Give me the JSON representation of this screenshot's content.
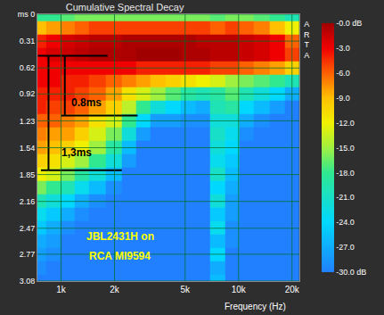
{
  "chart_data": {
    "type": "heatmap",
    "title": "Cumulative Spectral Decay",
    "x_label": "Frequency (Hz)",
    "log": "x",
    "grid": true,
    "watermark": "ARTA",
    "x": [
      750,
      900,
      1100,
      1300,
      1600,
      2000,
      2400,
      2900,
      3500,
      4300,
      5200,
      6300,
      7600,
      9200,
      11000,
      13500,
      16500,
      20000
    ],
    "y": [
      0,
      0.15,
      0.31,
      0.46,
      0.62,
      0.77,
      0.92,
      1.08,
      1.23,
      1.38,
      1.54,
      1.69,
      1.85,
      2.0,
      2.16,
      2.31,
      2.47,
      2.62,
      2.77,
      2.93,
      3.08
    ],
    "z": [
      [
        -18,
        -18,
        -17,
        -16,
        -16,
        -16,
        -16,
        -16,
        -16,
        -16,
        -16,
        -16,
        -17,
        -16,
        -16,
        -17,
        -18,
        -20
      ],
      [
        -9,
        -8,
        -7,
        -6,
        -5,
        -5,
        -5,
        -5,
        -5,
        -5,
        -5,
        -5,
        -6,
        -5,
        -6,
        -7,
        -9,
        -12
      ],
      [
        -4,
        -3,
        -2,
        -1.5,
        -1,
        -1,
        -0.5,
        -0.5,
        -0.5,
        -0.5,
        -0.5,
        -1,
        -1,
        -1,
        -1.5,
        -2,
        -3,
        -6
      ],
      [
        -3,
        -2,
        -1.5,
        -1,
        -0.5,
        -0.5,
        -0.5,
        0,
        0,
        0,
        -0.5,
        -0.5,
        -1,
        -1,
        -1.5,
        -2,
        -3,
        -5
      ],
      [
        -3,
        -3,
        -3,
        -3,
        -3,
        -3,
        -3,
        -4,
        -4,
        -4,
        -4,
        -4,
        -5,
        -5,
        -6,
        -7,
        -8,
        -10
      ],
      [
        -3,
        -3,
        -4,
        -4,
        -5,
        -6,
        -7,
        -8,
        -9,
        -10,
        -11,
        -12,
        -13,
        -15,
        -16,
        -17,
        -18,
        -20
      ],
      [
        -4,
        -4,
        -4,
        -5,
        -6,
        -8,
        -11,
        -13,
        -15,
        -17,
        -19,
        -20,
        -19,
        -17,
        -20,
        -22,
        -24,
        -27
      ],
      [
        -4,
        -5,
        -5,
        -6,
        -8,
        -10,
        -14,
        -18,
        -22,
        -24,
        -26,
        -27,
        -20,
        -19,
        -24,
        -26,
        -28,
        -30
      ],
      [
        -6,
        -6,
        -7,
        -8,
        -11,
        -13,
        -18,
        -24,
        -28,
        -28,
        -29,
        -29,
        -22,
        -22,
        -27,
        -29,
        -30,
        -30
      ],
      [
        -7,
        -8,
        -8,
        -10,
        -13,
        -16,
        -22,
        -28,
        -30,
        -30,
        -30,
        -30,
        -21,
        -23,
        -29,
        -30,
        -30,
        -30
      ],
      [
        -8,
        -9,
        -10,
        -12,
        -15,
        -19,
        -26,
        -30,
        -30,
        -30,
        -30,
        -30,
        -22,
        -24,
        -30,
        -30,
        -30,
        -30
      ],
      [
        -10,
        -11,
        -13,
        -15,
        -18,
        -22,
        -28,
        -30,
        -30,
        -30,
        -30,
        -30,
        -23,
        -25,
        -30,
        -30,
        -30,
        -30
      ],
      [
        -12,
        -13,
        -16,
        -19,
        -22,
        -26,
        -30,
        -30,
        -30,
        -30,
        -30,
        -30,
        -21,
        -26,
        -30,
        -30,
        -30,
        -30
      ],
      [
        -16,
        -18,
        -20,
        -23,
        -26,
        -29,
        -30,
        -30,
        -30,
        -30,
        -30,
        -30,
        -24,
        -27,
        -30,
        -30,
        -30,
        -30
      ],
      [
        -20,
        -22,
        -24,
        -27,
        -29,
        -30,
        -30,
        -30,
        -30,
        -30,
        -30,
        -30,
        -22,
        -28,
        -30,
        -30,
        -30,
        -30
      ],
      [
        -23,
        -25,
        -27,
        -29,
        -30,
        -30,
        -30,
        -30,
        -30,
        -30,
        -30,
        -30,
        -25,
        -28,
        -30,
        -30,
        -30,
        -30
      ],
      [
        -25,
        -27,
        -29,
        -30,
        -30,
        -30,
        -30,
        -30,
        -30,
        -30,
        -30,
        -30,
        -23,
        -29,
        -30,
        -30,
        -30,
        -30
      ],
      [
        -27,
        -28,
        -30,
        -30,
        -30,
        -30,
        -30,
        -30,
        -30,
        -30,
        -30,
        -30,
        -26,
        -29,
        -30,
        -30,
        -30,
        -30
      ],
      [
        -28,
        -29,
        -30,
        -30,
        -30,
        -30,
        -30,
        -30,
        -30,
        -30,
        -30,
        -30,
        -24,
        -30,
        -30,
        -30,
        -30,
        -30
      ],
      [
        -29,
        -30,
        -30,
        -30,
        -30,
        -30,
        -30,
        -30,
        -30,
        -30,
        -30,
        -30,
        -27,
        -30,
        -30,
        -30,
        -30,
        -30
      ],
      [
        -30,
        -30,
        -30,
        -30,
        -30,
        -30,
        -30,
        -30,
        -30,
        -30,
        -30,
        -30,
        -26,
        -30,
        -30,
        -30,
        -30,
        -30
      ]
    ],
    "xlim": [
      736,
      22000
    ],
    "xticks": [
      {
        "value": 1000,
        "label": "1k"
      },
      {
        "value": 2000,
        "label": "2k"
      },
      {
        "value": 5000,
        "label": "5k"
      },
      {
        "value": 10000,
        "label": "10k"
      },
      {
        "value": 20000,
        "label": "20k"
      }
    ],
    "ylim": [
      3.08,
      0
    ],
    "yticks": [
      {
        "value": 0,
        "label": "ms 0"
      },
      0.31,
      0.62,
      0.92,
      1.23,
      1.54,
      1.85,
      2.16,
      2.47,
      2.77,
      3.08
    ],
    "colorbar": {
      "range": [
        -30,
        0
      ],
      "ticks": [
        {
          "value": 0,
          "label": "-0.0 dB"
        },
        {
          "value": -3,
          "label": "-3.0"
        },
        {
          "value": -6,
          "label": "-6.0"
        },
        {
          "value": -9,
          "label": "-9.0"
        },
        {
          "value": -12,
          "label": "-12.0"
        },
        {
          "value": -15,
          "label": "-15.0"
        },
        {
          "value": -18,
          "label": "-18.0"
        },
        {
          "value": -21,
          "label": "-21.0"
        },
        {
          "value": -24,
          "label": "-24.0"
        },
        {
          "value": -27,
          "label": "-27.0"
        },
        {
          "value": -30,
          "label": "-30.0 dB"
        }
      ]
    },
    "lines": [
      {
        "x": [
          740,
          1830
        ],
        "y": [
          0.48,
          0.48
        ]
      },
      {
        "x": [
          1000,
          2700
        ],
        "y": [
          1.17,
          1.17
        ]
      },
      {
        "x": [
          770,
          2200
        ],
        "y": [
          1.8,
          1.8
        ]
      },
      {
        "x": [
          850,
          850
        ],
        "y": [
          0.48,
          1.8
        ]
      },
      {
        "x": [
          1050,
          1050
        ],
        "y": [
          0.48,
          1.17
        ]
      }
    ],
    "annotations": [
      {
        "text": "0.8ms",
        "x": 1390,
        "y": 1.02,
        "color": "#000000"
      },
      {
        "text": "1,3ms",
        "x": 1220,
        "y": 1.6,
        "color": "#000000"
      },
      {
        "text": "JBL2431H on",
        "x": 2150,
        "y": 2.57,
        "color": "#ffff00"
      },
      {
        "text": "RCA MI9594",
        "x": 2150,
        "y": 2.79,
        "color": "#ffff00"
      }
    ]
  }
}
